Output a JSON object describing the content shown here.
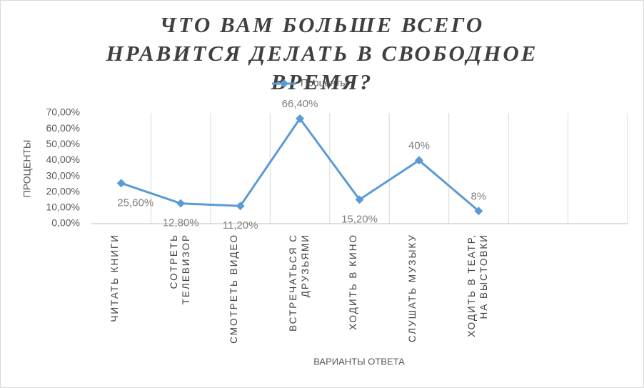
{
  "chart_data": {
    "type": "line",
    "title": "ЧТО ВАМ БОЛЬШЕ ВСЕГО НРАВИТСЯ ДЕЛАТЬ В СВОБОДНОЕ ВРЕМЯ?",
    "y_label": "ПРОЦЕНТЫ",
    "x_label": "ВАРИАНТЫ ОТВЕТА",
    "categories": [
      "ЧИТАТЬ КНИГИ",
      "СОТРЕТЬ ТЕЛЕВИЗОР",
      "СМОТРЕТЬ ВИДЕО",
      "ВСТРЕЧАТЬСЯ С ДРУЗЬЯМИ",
      "ХОДИТЬ В КИНО",
      "СЛУШАТЬ МУЗЫКУ",
      "ХОДИТЬ В ТЕАТР, НА ВЫСТОВКИ",
      null,
      null
    ],
    "series": [
      {
        "name": "Проценты",
        "color": "#5b9bd5",
        "values": [
          25.6,
          12.8,
          11.2,
          66.4,
          15.2,
          40,
          8,
          null,
          null
        ],
        "value_labels": [
          "25,60%",
          "12,80%",
          "11,20%",
          "66,40%",
          "15,20%",
          "40%",
          "8%",
          null,
          null
        ]
      }
    ],
    "ylim": [
      0,
      70
    ],
    "yticks": [
      {
        "value": 0,
        "label": "0,00%"
      },
      {
        "value": 10,
        "label": "10,00%"
      },
      {
        "value": 20,
        "label": "20,00%"
      },
      {
        "value": 30,
        "label": "30,00%"
      },
      {
        "value": 40,
        "label": "40,00%"
      },
      {
        "value": 50,
        "label": "50,00%"
      },
      {
        "value": 60,
        "label": "60,00%"
      },
      {
        "value": 70,
        "label": "70,00%"
      }
    ],
    "grid": "x",
    "legend": "top"
  }
}
